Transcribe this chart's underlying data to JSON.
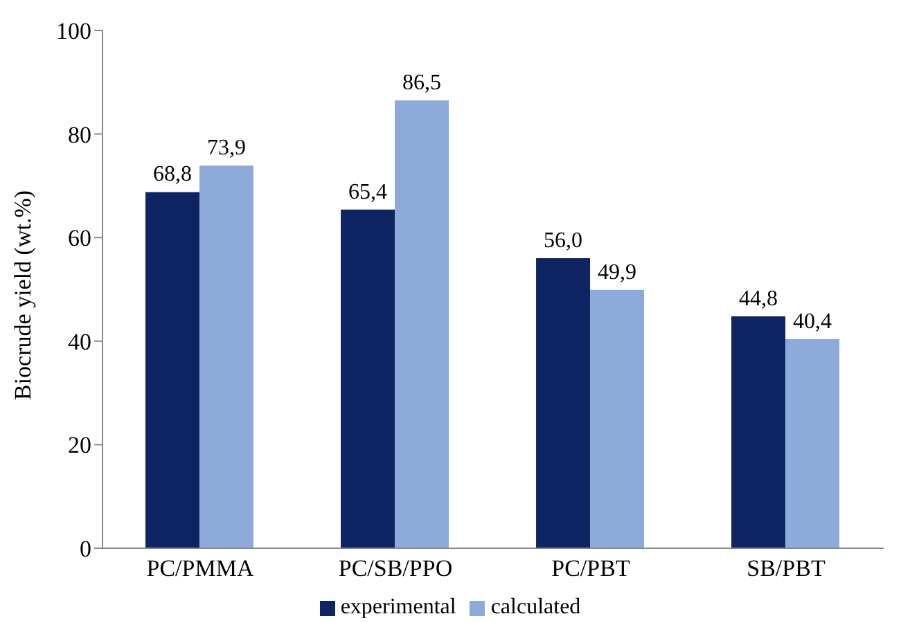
{
  "chart_data": {
    "type": "bar",
    "ylabel": "Biocrude yield (wt.%)",
    "categories": [
      "PC/PMMA",
      "PC/SB/PPO",
      "PC/PBT",
      "SB/PBT"
    ],
    "series": [
      {
        "name": "experimental",
        "color": "#0f2462",
        "values": [
          68.8,
          65.4,
          56.0,
          44.8
        ],
        "value_labels": [
          "68,8",
          "65,4",
          "56,0",
          "44,8"
        ]
      },
      {
        "name": "calculated",
        "color": "#8eaadb",
        "values": [
          73.9,
          86.5,
          49.9,
          40.4
        ],
        "value_labels": [
          "73,9",
          "86,5",
          "49,9",
          "40,4"
        ]
      }
    ],
    "ylim": [
      0,
      100
    ],
    "yticks": [
      0,
      20,
      40,
      60,
      80,
      100
    ],
    "grid": false,
    "legend": "bottom"
  }
}
